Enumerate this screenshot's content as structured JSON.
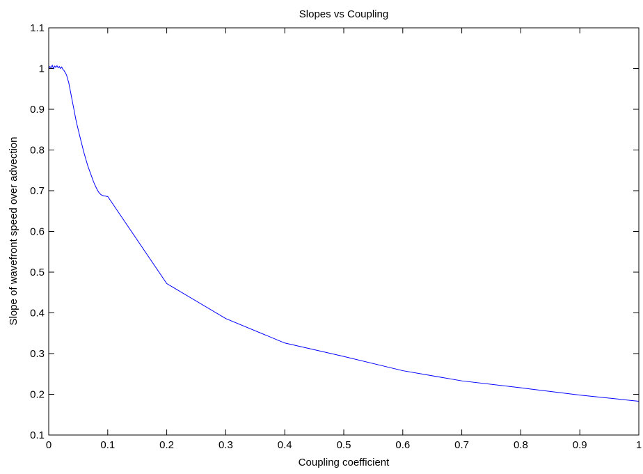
{
  "chart_data": {
    "type": "line",
    "title": "Slopes vs Coupling",
    "xlabel": "Coupling coefficient",
    "ylabel": "Slope of wavefront speed over advection",
    "xlim": [
      0,
      1
    ],
    "ylim": [
      0.1,
      1.1
    ],
    "xticks": [
      0,
      0.1,
      0.2,
      0.3,
      0.4,
      0.5,
      0.6,
      0.7,
      0.8,
      0.9,
      1
    ],
    "xtick_labels": [
      "0",
      "0.1",
      "0.2",
      "0.3",
      "0.4",
      "0.5",
      "0.6",
      "0.7",
      "0.8",
      "0.9",
      "1"
    ],
    "yticks": [
      0.1,
      0.2,
      0.3,
      0.4,
      0.5,
      0.6,
      0.7,
      0.8,
      0.9,
      1,
      1.1
    ],
    "ytick_labels": [
      "0.1",
      "0.2",
      "0.3",
      "0.4",
      "0.5",
      "0.6",
      "0.7",
      "0.8",
      "0.9",
      "1",
      "1.1"
    ],
    "grid": false,
    "series": [
      {
        "color": "#0000ff",
        "x": [
          0,
          0.002,
          0.004,
          0.006,
          0.008,
          0.01,
          0.012,
          0.014,
          0.016,
          0.018,
          0.02,
          0.022,
          0.024,
          0.026,
          0.028,
          0.03,
          0.032,
          0.034,
          0.036,
          0.038,
          0.04,
          0.042,
          0.044,
          0.046,
          0.048,
          0.05,
          0.052,
          0.054,
          0.056,
          0.058,
          0.06,
          0.062,
          0.064,
          0.066,
          0.068,
          0.07,
          0.072,
          0.074,
          0.076,
          0.078,
          0.08,
          0.082,
          0.084,
          0.086,
          0.088,
          0.09,
          0.092,
          0.094,
          0.096,
          0.098,
          0.1,
          0.2,
          0.3,
          0.4,
          0.5,
          0.6,
          0.7,
          0.8,
          0.9,
          1.0
        ],
        "y": [
          1.0,
          1.005,
          1.002,
          1.008,
          1.0,
          1.006,
          1.003,
          1.007,
          1.002,
          1.005,
          1.0,
          1.004,
          0.998,
          0.995,
          0.99,
          0.985,
          0.975,
          0.965,
          0.95,
          0.935,
          0.92,
          0.905,
          0.89,
          0.875,
          0.862,
          0.85,
          0.838,
          0.826,
          0.815,
          0.803,
          0.792,
          0.782,
          0.772,
          0.762,
          0.754,
          0.746,
          0.738,
          0.73,
          0.722,
          0.715,
          0.709,
          0.703,
          0.698,
          0.694,
          0.691,
          0.689,
          0.688,
          0.687,
          0.687,
          0.686,
          0.686,
          0.472,
          0.386,
          0.326,
          0.293,
          0.258,
          0.233,
          0.216,
          0.198,
          0.183
        ]
      }
    ]
  }
}
